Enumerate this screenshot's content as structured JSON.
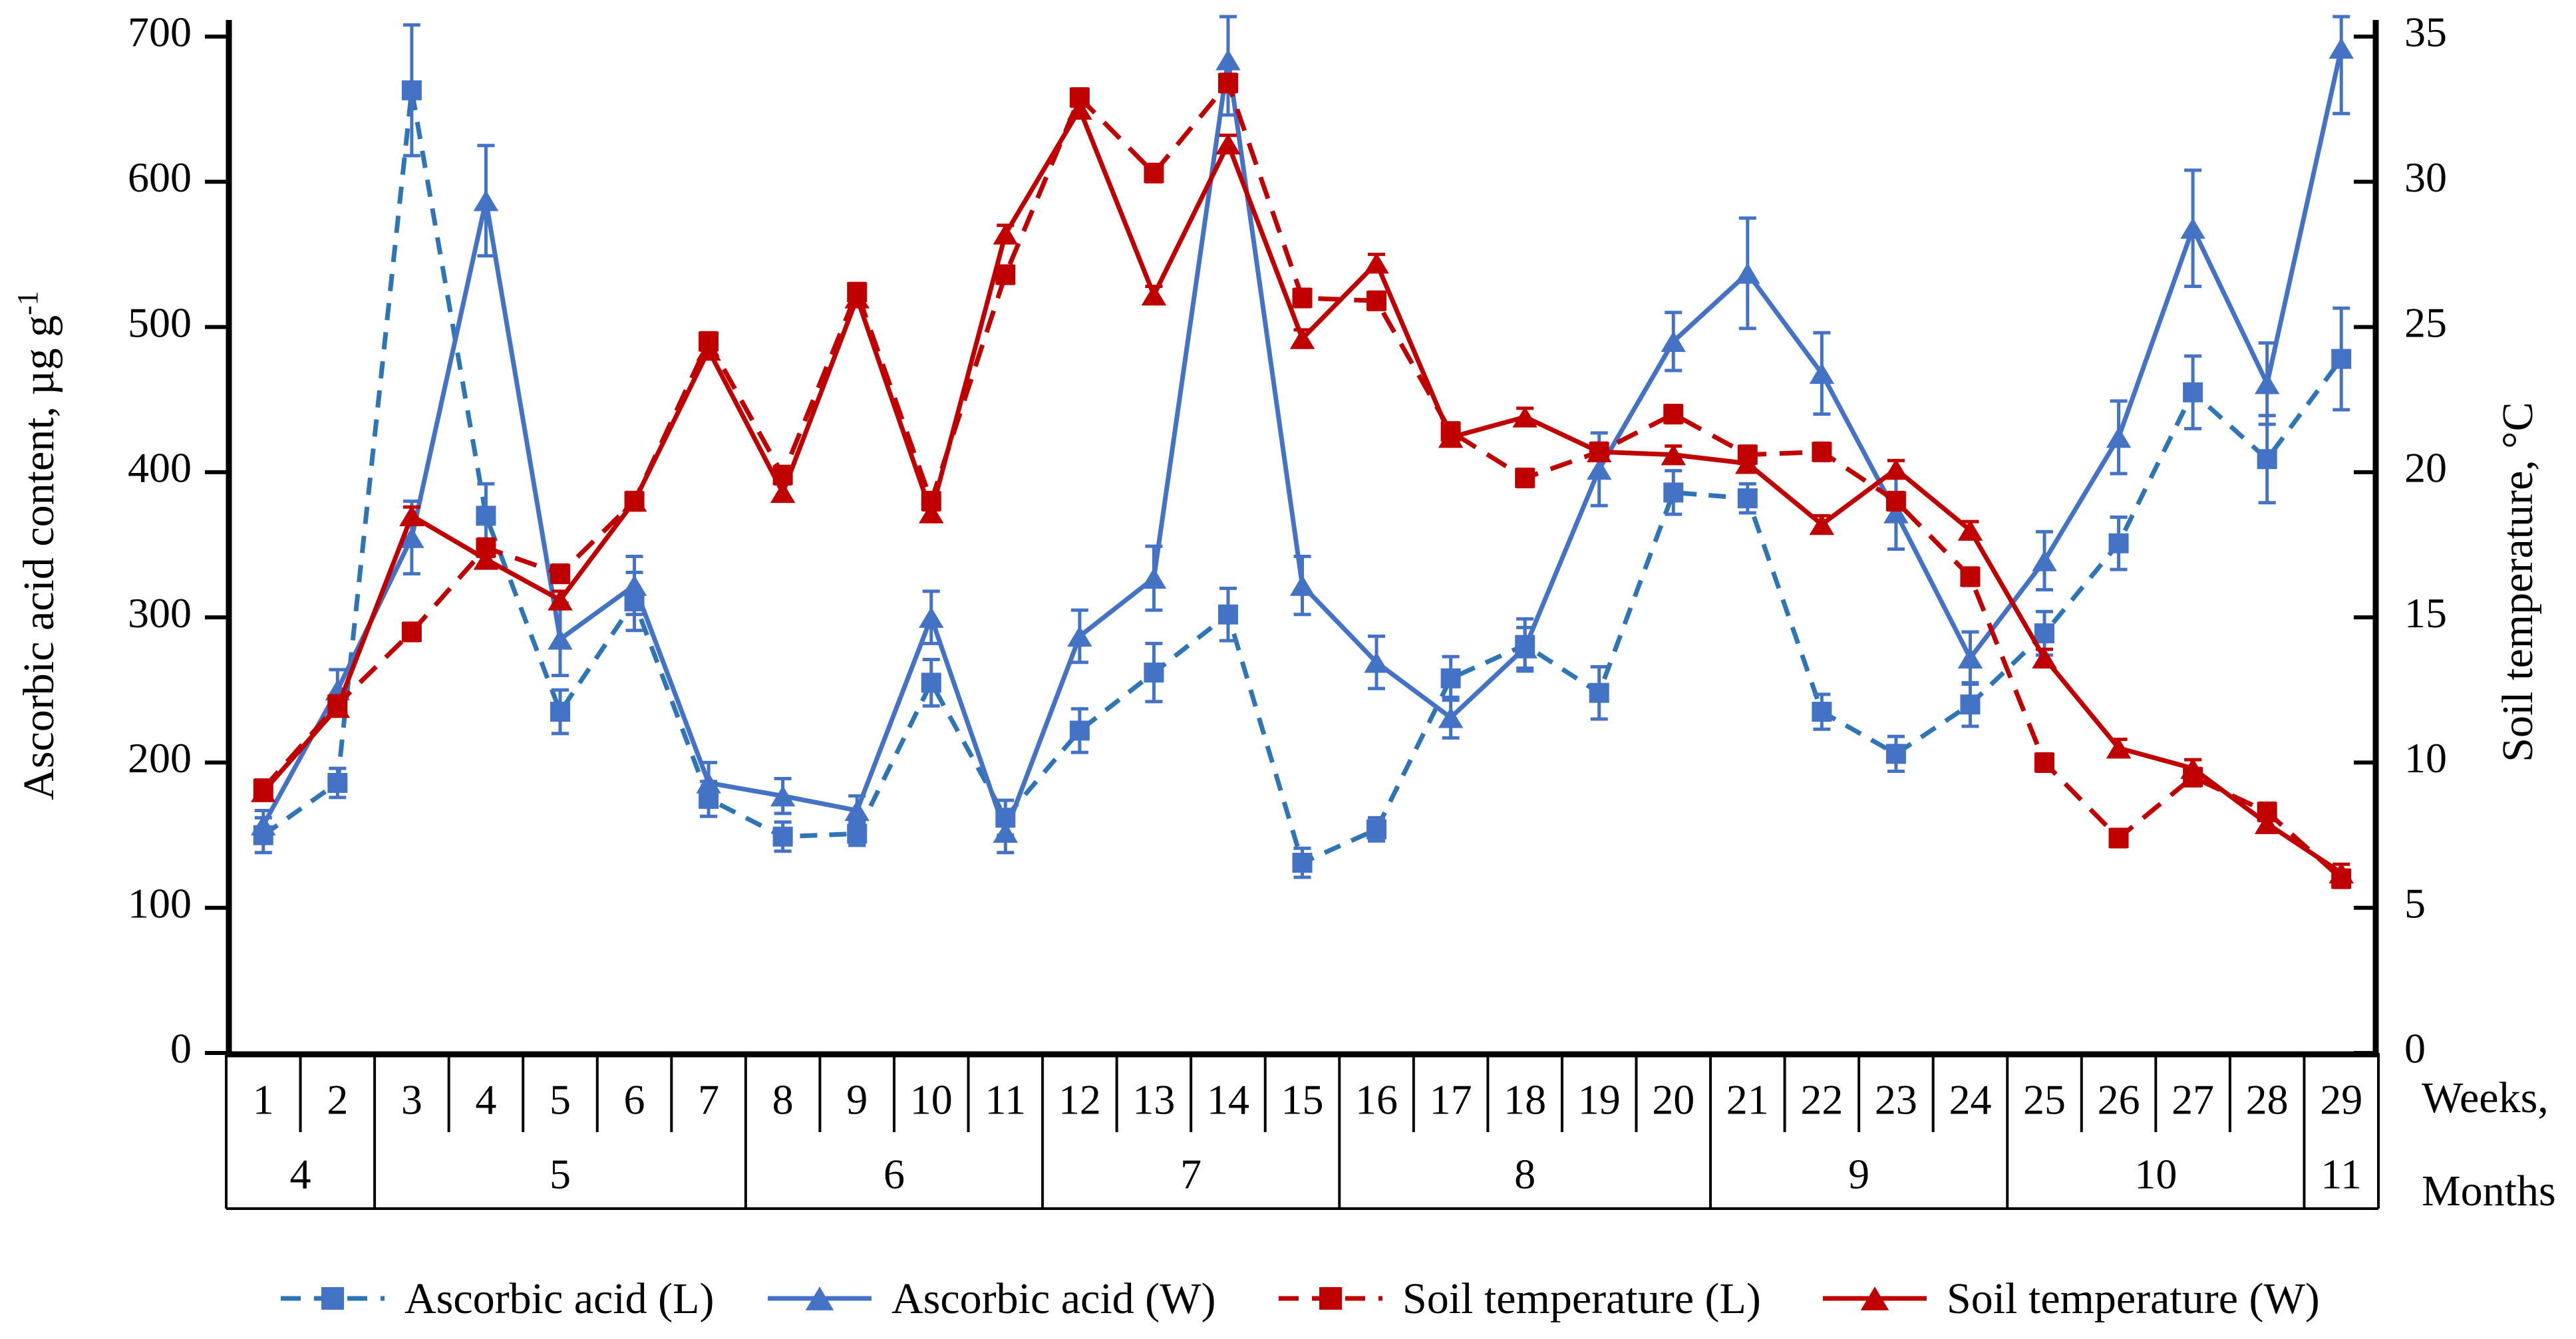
{
  "axes": {
    "left_title_main": "Ascorbic acid content, µg g",
    "left_title_sup": "-1",
    "right_title": "Soil temperature, °C",
    "left_ticks": [
      0,
      100,
      200,
      300,
      400,
      500,
      600,
      700
    ],
    "right_ticks": [
      0,
      5,
      10,
      15,
      20,
      25,
      30,
      35
    ],
    "x_right_label_weeks": "Weeks,",
    "x_right_label_months": "Months"
  },
  "chart_data": {
    "type": "line",
    "title": "",
    "xlabel": "Weeks, Months",
    "ylabel_left": "Ascorbic acid content, µg g-1",
    "ylabel_right": "Soil temperature, °C",
    "left_ylim": [
      0,
      700
    ],
    "right_ylim": [
      0,
      35
    ],
    "grid": false,
    "legend_position": "bottom",
    "x_weeks": [
      1,
      2,
      3,
      4,
      5,
      6,
      7,
      8,
      9,
      10,
      11,
      12,
      13,
      14,
      15,
      16,
      17,
      18,
      19,
      20,
      21,
      22,
      23,
      24,
      25,
      26,
      27,
      28,
      29
    ],
    "month_bands": [
      {
        "label": "4",
        "from": 1,
        "to": 2
      },
      {
        "label": "5",
        "from": 3,
        "to": 7
      },
      {
        "label": "6",
        "from": 8,
        "to": 11
      },
      {
        "label": "7",
        "from": 12,
        "to": 15
      },
      {
        "label": "8",
        "from": 16,
        "to": 20
      },
      {
        "label": "9",
        "from": 21,
        "to": 24
      },
      {
        "label": "10",
        "from": 25,
        "to": 28
      },
      {
        "label": "11",
        "from": 29,
        "to": 29
      }
    ],
    "series": [
      {
        "name": "Ascorbic acid (L)",
        "axis": "left",
        "line": "dashed",
        "marker": "square",
        "line_color": "#2E75B6",
        "marker_color": "#4472C4",
        "values": [
          150,
          186,
          663,
          370,
          235,
          311,
          175,
          149,
          151,
          255,
          162,
          222,
          262,
          302,
          131,
          154,
          258,
          281,
          248,
          386,
          382,
          235,
          206,
          240,
          289,
          351,
          455,
          409,
          478
        ],
        "errors": [
          12,
          10,
          45,
          22,
          15,
          20,
          12,
          10,
          8,
          16,
          12,
          15,
          20,
          18,
          10,
          8,
          15,
          18,
          18,
          15,
          10,
          12,
          12,
          15,
          15,
          18,
          25,
          30,
          35
        ]
      },
      {
        "name": "Ascorbic acid (W)",
        "axis": "left",
        "line": "solid",
        "marker": "triangle",
        "line_color": "#4472C4",
        "marker_color": "#4472C4",
        "values": [
          157,
          250,
          355,
          587,
          285,
          322,
          186,
          177,
          167,
          300,
          152,
          287,
          327,
          684,
          322,
          269,
          231,
          279,
          402,
          490,
          537,
          468,
          372,
          272,
          339,
          424,
          568,
          461,
          692
        ],
        "errors": [
          10,
          14,
          25,
          38,
          25,
          20,
          14,
          12,
          10,
          18,
          14,
          18,
          22,
          38,
          20,
          18,
          14,
          14,
          25,
          20,
          38,
          28,
          25,
          18,
          20,
          25,
          40,
          28,
          45
        ]
      },
      {
        "name": "Soil temperature (L)",
        "axis": "right",
        "line": "dashed",
        "marker": "square",
        "line_color": "#C00000",
        "marker_color": "#C00000",
        "values": [
          9.1,
          12.0,
          14.5,
          17.4,
          16.5,
          19.0,
          24.5,
          19.9,
          26.2,
          19.0,
          26.8,
          32.9,
          30.3,
          33.4,
          26.0,
          25.9,
          21.4,
          19.8,
          20.7,
          22.0,
          20.6,
          20.7,
          19.0,
          16.4,
          10.0,
          7.4,
          9.5,
          8.3,
          6.0
        ],
        "errors": [
          0.3,
          0.3,
          0.3,
          0.3,
          0.3,
          0.3,
          0.3,
          0.3,
          0.3,
          0.3,
          0.3,
          0.3,
          0.3,
          0.3,
          0.3,
          0.3,
          0.3,
          0.3,
          0.3,
          0.3,
          0.3,
          0.3,
          0.3,
          0.3,
          0.3,
          0.3,
          0.3,
          0.3,
          0.3
        ]
      },
      {
        "name": "Soil temperature (W)",
        "axis": "right",
        "line": "solid",
        "marker": "triangle",
        "line_color": "#C00000",
        "marker_color": "#C00000",
        "values": [
          9.0,
          11.9,
          18.5,
          17.0,
          15.6,
          19.0,
          24.2,
          19.3,
          26.0,
          18.6,
          28.2,
          32.5,
          26.1,
          31.3,
          24.6,
          27.2,
          21.2,
          21.9,
          20.7,
          20.6,
          20.3,
          18.2,
          20.1,
          18.0,
          13.6,
          10.5,
          9.8,
          7.9,
          6.2
        ],
        "errors": [
          0.3,
          0.3,
          0.3,
          0.3,
          0.3,
          0.3,
          0.3,
          0.3,
          0.3,
          0.3,
          0.3,
          0.3,
          0.3,
          0.3,
          0.3,
          0.3,
          0.3,
          0.3,
          0.3,
          0.3,
          0.3,
          0.3,
          0.3,
          0.3,
          0.3,
          0.3,
          0.3,
          0.3,
          0.3
        ]
      }
    ]
  },
  "legend": {
    "items": [
      {
        "label": "Ascorbic acid (L)"
      },
      {
        "label": "Ascorbic acid (W)"
      },
      {
        "label": "Soil temperature (L)"
      },
      {
        "label": "Soil temperature (W)"
      }
    ]
  }
}
